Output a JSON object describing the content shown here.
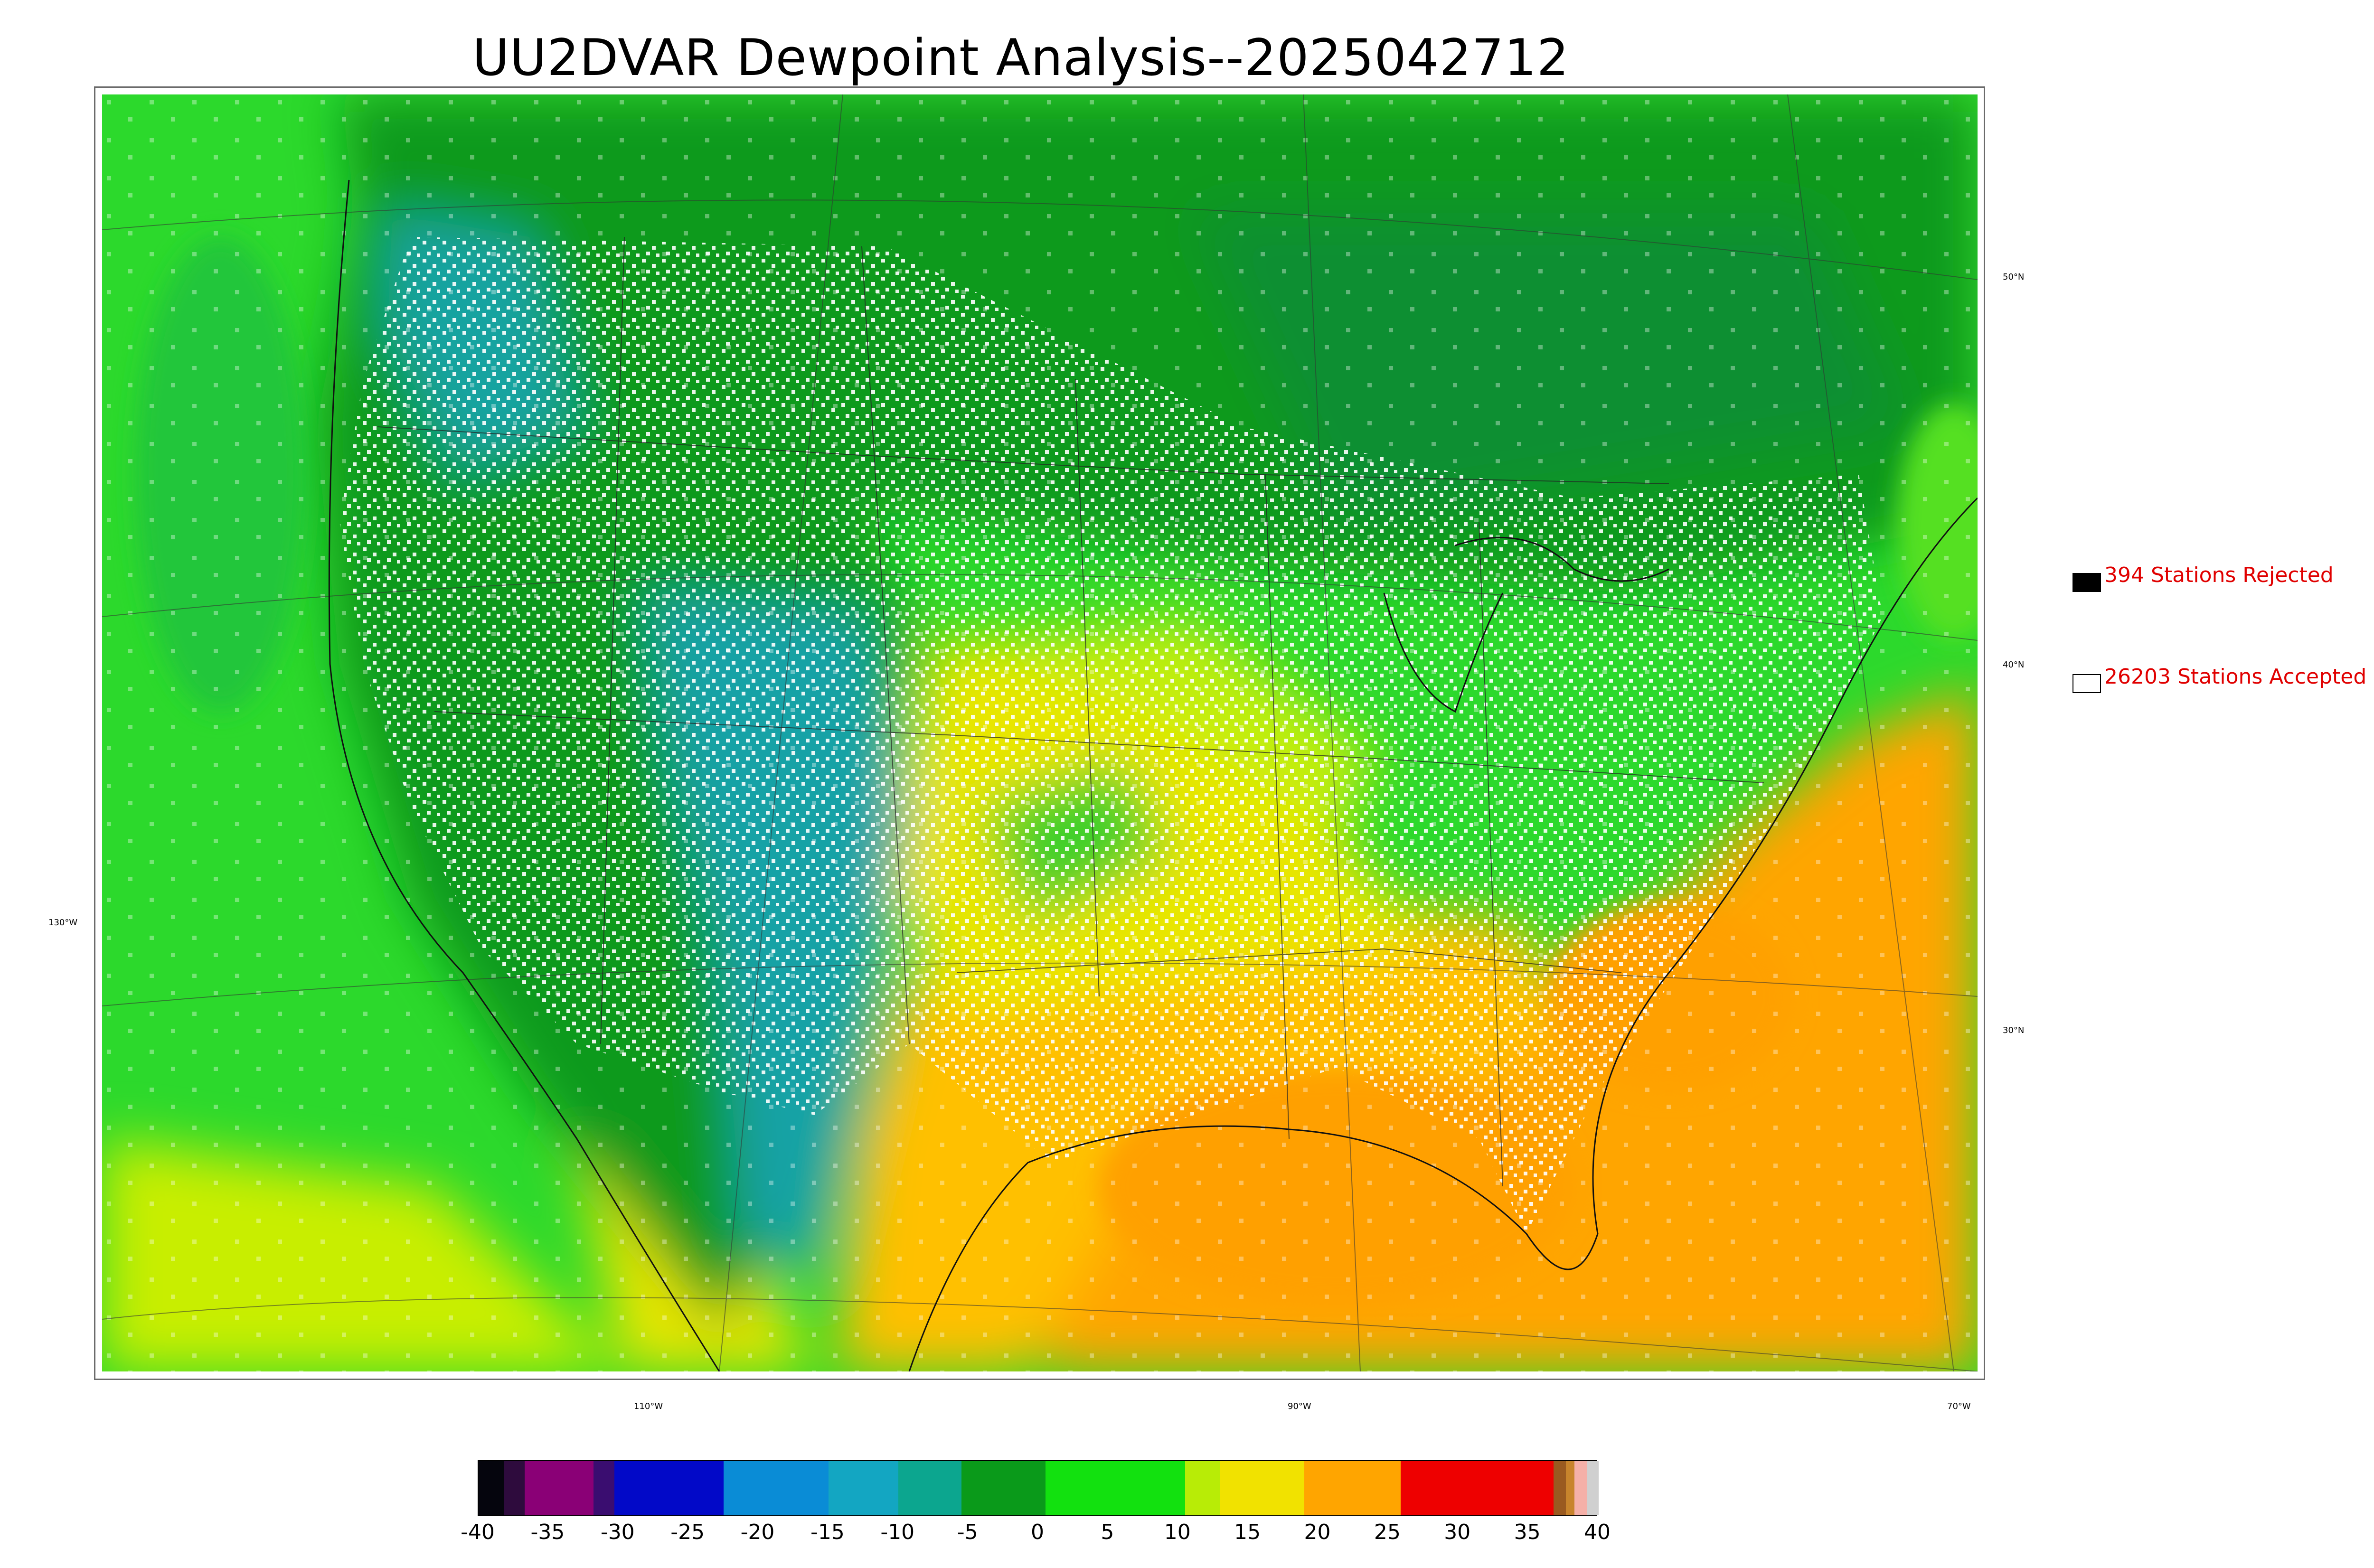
{
  "title": "UU2DVAR Dewpoint Analysis--2025042712",
  "legend": {
    "rejected": "394 Stations Rejected",
    "accepted": "26203 Stations Accepted",
    "rejected_color": "#000000",
    "accepted_color": "#ffffff"
  },
  "map": {
    "lon_labels": [
      "110°W",
      "90°W",
      "70°W"
    ],
    "lat_labels_right": [
      "50°N",
      "40°N",
      "30°N"
    ],
    "lat_labels_left": [
      "130°W"
    ]
  },
  "colorbar": {
    "ticks": [
      "-40",
      "-35",
      "-30",
      "-25",
      "-20",
      "-15",
      "-10",
      "-5",
      "0",
      "5",
      "10",
      "15",
      "20",
      "25",
      "30",
      "35",
      "40"
    ],
    "range": [
      -40,
      40
    ],
    "segments": [
      {
        "from": -40,
        "to": -38.2,
        "color": "#05050d"
      },
      {
        "from": -38.2,
        "to": -36.7,
        "color": "#2e0b3d"
      },
      {
        "from": -36.7,
        "to": -31.8,
        "color": "#8a0076"
      },
      {
        "from": -31.8,
        "to": -30.3,
        "color": "#3a0d70"
      },
      {
        "from": -30.3,
        "to": -22.5,
        "color": "#0209c8"
      },
      {
        "from": -22.5,
        "to": -15.0,
        "color": "#0a8cd6"
      },
      {
        "from": -15.0,
        "to": -10.0,
        "color": "#13a6c2"
      },
      {
        "from": -10.0,
        "to": -5.5,
        "color": "#0ca68f"
      },
      {
        "from": -5.5,
        "to": 0.5,
        "color": "#0a9a1a"
      },
      {
        "from": 0.5,
        "to": 10.5,
        "color": "#12e10f"
      },
      {
        "from": 10.5,
        "to": 13.0,
        "color": "#b8ec06"
      },
      {
        "from": 13.0,
        "to": 19.0,
        "color": "#f1e200"
      },
      {
        "from": 19.0,
        "to": 25.9,
        "color": "#ffa500"
      },
      {
        "from": 25.9,
        "to": 36.8,
        "color": "#ee0000"
      },
      {
        "from": 36.8,
        "to": 37.7,
        "color": "#9a5a20"
      },
      {
        "from": 37.7,
        "to": 38.3,
        "color": "#c8842c"
      },
      {
        "from": 38.3,
        "to": 39.2,
        "color": "#f5b0a8"
      },
      {
        "from": 39.2,
        "to": 40.0,
        "color": "#d0d0d0"
      }
    ]
  },
  "colors": {
    "ocean_west": "#2cd92c",
    "gulf_atlantic": "#ffa500",
    "north": "#0a9a1a",
    "rockies": "#10a0a0",
    "plains": "#e6e800"
  }
}
